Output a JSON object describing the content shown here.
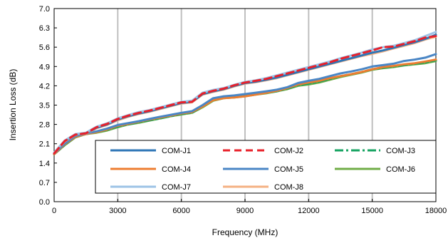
{
  "chart_data": {
    "type": "line",
    "title": "",
    "xlabel": "Frequency (MHz)",
    "ylabel": "Insertion Loss (dB)",
    "xlim": [
      0,
      18000
    ],
    "ylim": [
      0.0,
      7.0
    ],
    "x_ticks": [
      0,
      3000,
      6000,
      9000,
      12000,
      15000,
      18000
    ],
    "x_tick_labels": [
      "0",
      "3000",
      "6000",
      "9000",
      "12000",
      "15000",
      "18000"
    ],
    "y_ticks": [
      0.0,
      0.7,
      1.4,
      2.1,
      2.8,
      3.5,
      4.2,
      4.9,
      5.6,
      6.3,
      7.0
    ],
    "y_tick_labels": [
      "0.0",
      "0.7",
      "1.4",
      "2.1",
      "2.8",
      "3.5",
      "4.2",
      "4.9",
      "5.6",
      "6.3",
      "7.0"
    ],
    "grid": "vertical",
    "legend_position": "bottom-right",
    "x": [
      0,
      500,
      1000,
      1500,
      2000,
      2500,
      3000,
      3500,
      4000,
      4500,
      5000,
      5500,
      6000,
      6500,
      7000,
      7500,
      8000,
      8500,
      9000,
      9500,
      10000,
      10500,
      11000,
      11500,
      12000,
      12500,
      13000,
      13500,
      14000,
      14500,
      15000,
      15500,
      16000,
      16500,
      17000,
      17500,
      18000
    ],
    "series": [
      {
        "name": "COM-J1",
        "color": "#2e75b6",
        "dash": "solid",
        "values": [
          1.75,
          2.2,
          2.43,
          2.48,
          2.68,
          2.8,
          2.98,
          3.1,
          3.2,
          3.28,
          3.38,
          3.48,
          3.58,
          3.62,
          3.9,
          4.0,
          4.08,
          4.2,
          4.3,
          4.35,
          4.42,
          4.5,
          4.6,
          4.7,
          4.8,
          4.9,
          5.0,
          5.1,
          5.2,
          5.3,
          5.4,
          5.48,
          5.58,
          5.68,
          5.78,
          5.9,
          6.05
        ]
      },
      {
        "name": "COM-J2",
        "color": "#e8202a",
        "dash": "dashed",
        "values": [
          1.75,
          2.2,
          2.43,
          2.48,
          2.7,
          2.82,
          3.0,
          3.12,
          3.22,
          3.3,
          3.4,
          3.5,
          3.6,
          3.62,
          3.92,
          4.02,
          4.1,
          4.22,
          4.32,
          4.38,
          4.45,
          4.55,
          4.65,
          4.75,
          4.85,
          4.95,
          5.05,
          5.18,
          5.28,
          5.38,
          5.48,
          5.6,
          5.62,
          5.72,
          5.82,
          5.95,
          6.0
        ]
      },
      {
        "name": "COM-J3",
        "color": "#14a360",
        "dash": "dashdot",
        "values": [
          1.72,
          2.05,
          2.35,
          2.45,
          2.52,
          2.6,
          2.72,
          2.8,
          2.88,
          2.95,
          3.02,
          3.1,
          3.18,
          3.22,
          3.45,
          3.7,
          3.78,
          3.8,
          3.85,
          3.9,
          3.95,
          4.0,
          4.1,
          4.22,
          4.28,
          4.35,
          4.45,
          4.55,
          4.62,
          4.7,
          4.8,
          4.85,
          4.9,
          4.95,
          5.0,
          5.05,
          5.12
        ]
      },
      {
        "name": "COM-J4",
        "color": "#ed7d31",
        "dash": "solid",
        "values": [
          1.72,
          2.08,
          2.35,
          2.45,
          2.52,
          2.62,
          2.75,
          2.82,
          2.9,
          2.98,
          3.05,
          3.12,
          3.2,
          3.25,
          3.45,
          3.68,
          3.75,
          3.78,
          3.82,
          3.88,
          3.95,
          4.02,
          4.12,
          4.25,
          4.32,
          4.38,
          4.48,
          4.55,
          4.62,
          4.7,
          4.8,
          4.88,
          4.92,
          4.98,
          5.02,
          5.08,
          5.15
        ]
      },
      {
        "name": "COM-J5",
        "color": "#4a86c5",
        "dash": "solid",
        "values": [
          1.75,
          2.1,
          2.38,
          2.47,
          2.55,
          2.65,
          2.78,
          2.85,
          2.92,
          3.0,
          3.08,
          3.15,
          3.22,
          3.28,
          3.5,
          3.75,
          3.82,
          3.85,
          3.9,
          3.95,
          4.0,
          4.06,
          4.15,
          4.3,
          4.38,
          4.45,
          4.55,
          4.65,
          4.72,
          4.8,
          4.9,
          4.95,
          5.0,
          5.1,
          5.15,
          5.22,
          5.35
        ]
      },
      {
        "name": "COM-J6",
        "color": "#70ad47",
        "dash": "solid",
        "values": [
          1.72,
          2.05,
          2.33,
          2.45,
          2.5,
          2.58,
          2.7,
          2.8,
          2.86,
          2.94,
          3.02,
          3.1,
          3.16,
          3.22,
          3.42,
          3.66,
          3.75,
          3.78,
          3.82,
          3.88,
          3.93,
          4.0,
          4.08,
          4.2,
          4.25,
          4.32,
          4.42,
          4.52,
          4.6,
          4.68,
          4.78,
          4.84,
          4.88,
          4.94,
          4.98,
          5.02,
          5.1
        ]
      },
      {
        "name": "COM-J7",
        "color": "#9dc3e6",
        "dash": "solid",
        "values": [
          1.78,
          2.22,
          2.45,
          2.5,
          2.72,
          2.84,
          3.02,
          3.14,
          3.25,
          3.32,
          3.42,
          3.52,
          3.62,
          3.66,
          3.95,
          4.05,
          4.12,
          4.24,
          4.34,
          4.4,
          4.48,
          4.58,
          4.68,
          4.78,
          4.88,
          4.98,
          5.08,
          5.2,
          5.3,
          5.4,
          5.52,
          5.6,
          5.65,
          5.75,
          5.85,
          6.0,
          6.15
        ]
      },
      {
        "name": "COM-J8",
        "color": "#f4b183",
        "dash": "solid",
        "values": [
          1.75,
          2.18,
          2.42,
          2.47,
          2.66,
          2.78,
          2.95,
          3.08,
          3.18,
          3.26,
          3.36,
          3.46,
          3.56,
          3.6,
          3.88,
          3.98,
          4.06,
          4.18,
          4.28,
          4.33,
          4.4,
          4.48,
          4.58,
          4.68,
          4.78,
          4.88,
          4.98,
          5.08,
          5.18,
          5.28,
          5.36,
          5.45,
          5.55,
          5.65,
          5.75,
          5.88,
          5.98
        ]
      }
    ]
  }
}
